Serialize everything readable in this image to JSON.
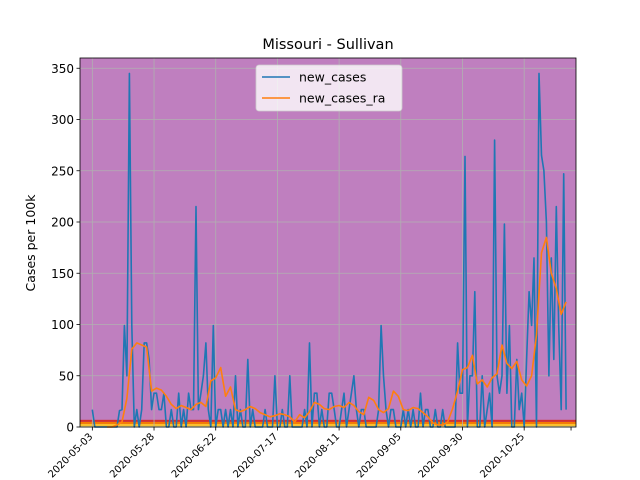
{
  "chart_data": {
    "type": "line",
    "title": "Missouri - Sullivan",
    "xlabel": "",
    "ylabel": "Cases per 100k",
    "xlim": [
      "2020-04-28",
      "2020-11-15"
    ],
    "ylim": [
      0,
      360
    ],
    "grid": true,
    "legend": "top-center",
    "background": {
      "color": "#bf7fbf",
      "bands": [
        {
          "from": 0,
          "to": 1,
          "color": "#f5e28a"
        },
        {
          "from": 1,
          "to": 3,
          "color": "#fbc02d"
        },
        {
          "from": 3,
          "to": 5,
          "color": "#f57c00"
        },
        {
          "from": 5,
          "to": 7,
          "color": "#d32f2f"
        }
      ]
    },
    "xticks": [
      "2020-05-03",
      "2020-05-28",
      "2020-06-22",
      "2020-07-17",
      "2020-08-11",
      "2020-09-05",
      "2020-09-30",
      "2020-10-25"
    ],
    "yticks": [
      0,
      50,
      100,
      150,
      200,
      250,
      300,
      350
    ],
    "series": [
      {
        "name": "new_cases",
        "color": "#1f77b4",
        "x": [
          "2020-05-03",
          "2020-05-04",
          "2020-05-05",
          "2020-05-06",
          "2020-05-07",
          "2020-05-08",
          "2020-05-09",
          "2020-05-10",
          "2020-05-11",
          "2020-05-12",
          "2020-05-13",
          "2020-05-14",
          "2020-05-15",
          "2020-05-16",
          "2020-05-17",
          "2020-05-18",
          "2020-05-19",
          "2020-05-20",
          "2020-05-21",
          "2020-05-22",
          "2020-05-23",
          "2020-05-24",
          "2020-05-25",
          "2020-05-26",
          "2020-05-27",
          "2020-05-28",
          "2020-05-29",
          "2020-05-30",
          "2020-05-31",
          "2020-06-01",
          "2020-06-02",
          "2020-06-03",
          "2020-06-04",
          "2020-06-05",
          "2020-06-06",
          "2020-06-07",
          "2020-06-08",
          "2020-06-09",
          "2020-06-10",
          "2020-06-11",
          "2020-06-12",
          "2020-06-13",
          "2020-06-14",
          "2020-06-15",
          "2020-06-16",
          "2020-06-17",
          "2020-06-18",
          "2020-06-19",
          "2020-06-20",
          "2020-06-21",
          "2020-06-22",
          "2020-06-23",
          "2020-06-24",
          "2020-06-25",
          "2020-06-26",
          "2020-06-27",
          "2020-06-28",
          "2020-06-29",
          "2020-06-30",
          "2020-07-01",
          "2020-07-02",
          "2020-07-03",
          "2020-07-04",
          "2020-07-05",
          "2020-07-06",
          "2020-07-07",
          "2020-07-08",
          "2020-07-09",
          "2020-07-10",
          "2020-07-11",
          "2020-07-12",
          "2020-07-13",
          "2020-07-14",
          "2020-07-15",
          "2020-07-16",
          "2020-07-17",
          "2020-07-18",
          "2020-07-19",
          "2020-07-20",
          "2020-07-21",
          "2020-07-22",
          "2020-07-23",
          "2020-07-24",
          "2020-07-25",
          "2020-07-26",
          "2020-07-27",
          "2020-07-28",
          "2020-07-29",
          "2020-07-30",
          "2020-07-31",
          "2020-08-01",
          "2020-08-02",
          "2020-08-03",
          "2020-08-04",
          "2020-08-05",
          "2020-08-06",
          "2020-08-07",
          "2020-08-08",
          "2020-08-09",
          "2020-08-10",
          "2020-08-11",
          "2020-08-12",
          "2020-08-13",
          "2020-08-14",
          "2020-08-15",
          "2020-08-16",
          "2020-08-17",
          "2020-08-18",
          "2020-08-19",
          "2020-08-20",
          "2020-08-21",
          "2020-08-22",
          "2020-08-23",
          "2020-08-24",
          "2020-08-25",
          "2020-08-26",
          "2020-08-27",
          "2020-08-28",
          "2020-08-29",
          "2020-08-30",
          "2020-08-31",
          "2020-09-01",
          "2020-09-02",
          "2020-09-03",
          "2020-09-04",
          "2020-09-05",
          "2020-09-06",
          "2020-09-07",
          "2020-09-08",
          "2020-09-09",
          "2020-09-10",
          "2020-09-11",
          "2020-09-12",
          "2020-09-13",
          "2020-09-14",
          "2020-09-15",
          "2020-09-16",
          "2020-09-17",
          "2020-09-18",
          "2020-09-19",
          "2020-09-20",
          "2020-09-21",
          "2020-09-22",
          "2020-09-23",
          "2020-09-24",
          "2020-09-25",
          "2020-09-26",
          "2020-09-27",
          "2020-09-28",
          "2020-09-29",
          "2020-09-30",
          "2020-10-01",
          "2020-10-02",
          "2020-10-03",
          "2020-10-04",
          "2020-10-05",
          "2020-10-06",
          "2020-10-07",
          "2020-10-08",
          "2020-10-09",
          "2020-10-10",
          "2020-10-11",
          "2020-10-12",
          "2020-10-13",
          "2020-10-14",
          "2020-10-15",
          "2020-10-16",
          "2020-10-17",
          "2020-10-18",
          "2020-10-19",
          "2020-10-20",
          "2020-10-21",
          "2020-10-22",
          "2020-10-23",
          "2020-10-24",
          "2020-10-25",
          "2020-10-26",
          "2020-10-27",
          "2020-10-28",
          "2020-10-29",
          "2020-10-30",
          "2020-10-31",
          "2020-11-01",
          "2020-11-02",
          "2020-11-03",
          "2020-11-04",
          "2020-11-05",
          "2020-11-06",
          "2020-11-07",
          "2020-11-08",
          "2020-11-09",
          "2020-11-10",
          "2020-11-11"
        ],
        "values": [
          17,
          0,
          0,
          0,
          0,
          0,
          0,
          0,
          0,
          0,
          0,
          16,
          17,
          99,
          50,
          345,
          99,
          0,
          17,
          0,
          17,
          82,
          82,
          66,
          17,
          33,
          33,
          17,
          17,
          33,
          0,
          0,
          17,
          0,
          0,
          33,
          0,
          17,
          0,
          33,
          17,
          17,
          215,
          17,
          33,
          50,
          82,
          17,
          0,
          99,
          0,
          17,
          17,
          0,
          17,
          0,
          17,
          0,
          50,
          0,
          17,
          0,
          0,
          66,
          0,
          17,
          0,
          0,
          0,
          0,
          17,
          0,
          0,
          0,
          50,
          0,
          0,
          17,
          0,
          0,
          50,
          0,
          0,
          0,
          0,
          0,
          17,
          0,
          82,
          0,
          33,
          33,
          0,
          17,
          0,
          0,
          33,
          33,
          17,
          0,
          0,
          17,
          33,
          0,
          17,
          33,
          50,
          17,
          0,
          17,
          17,
          0,
          0,
          0,
          0,
          0,
          17,
          99,
          50,
          17,
          0,
          17,
          17,
          0,
          0,
          0,
          17,
          0,
          17,
          0,
          17,
          0,
          0,
          33,
          0,
          17,
          17,
          0,
          0,
          17,
          0,
          0,
          17,
          0,
          0,
          0,
          0,
          0,
          82,
          33,
          33,
          264,
          0,
          50,
          50,
          132,
          0,
          0,
          50,
          0,
          17,
          33,
          0,
          280,
          50,
          33,
          50,
          198,
          33,
          99,
          0,
          0,
          66,
          17,
          33,
          0,
          66,
          132,
          99,
          165,
          0,
          345,
          265,
          250,
          200,
          50,
          165,
          66,
          215,
          99,
          17,
          247,
          17
        ]
      },
      {
        "name": "new_cases_ra",
        "color": "#ff7f0e",
        "x": [
          "2020-05-09",
          "2020-05-11",
          "2020-05-13",
          "2020-05-15",
          "2020-05-17",
          "2020-05-19",
          "2020-05-21",
          "2020-05-23",
          "2020-05-25",
          "2020-05-27",
          "2020-05-29",
          "2020-05-31",
          "2020-06-02",
          "2020-06-04",
          "2020-06-06",
          "2020-06-08",
          "2020-06-10",
          "2020-06-12",
          "2020-06-14",
          "2020-06-16",
          "2020-06-18",
          "2020-06-20",
          "2020-06-22",
          "2020-06-24",
          "2020-06-26",
          "2020-06-28",
          "2020-06-30",
          "2020-07-02",
          "2020-07-04",
          "2020-07-06",
          "2020-07-08",
          "2020-07-10",
          "2020-07-12",
          "2020-07-14",
          "2020-07-16",
          "2020-07-18",
          "2020-07-20",
          "2020-07-22",
          "2020-07-24",
          "2020-07-26",
          "2020-07-28",
          "2020-07-30",
          "2020-08-01",
          "2020-08-03",
          "2020-08-05",
          "2020-08-07",
          "2020-08-09",
          "2020-08-11",
          "2020-08-13",
          "2020-08-15",
          "2020-08-17",
          "2020-08-19",
          "2020-08-21",
          "2020-08-23",
          "2020-08-25",
          "2020-08-27",
          "2020-08-29",
          "2020-08-31",
          "2020-09-02",
          "2020-09-04",
          "2020-09-06",
          "2020-09-08",
          "2020-09-10",
          "2020-09-12",
          "2020-09-14",
          "2020-09-16",
          "2020-09-18",
          "2020-09-20",
          "2020-09-22",
          "2020-09-24",
          "2020-09-26",
          "2020-09-28",
          "2020-09-30",
          "2020-10-02",
          "2020-10-04",
          "2020-10-06",
          "2020-10-08",
          "2020-10-10",
          "2020-10-12",
          "2020-10-14",
          "2020-10-16",
          "2020-10-18",
          "2020-10-20",
          "2020-10-22",
          "2020-10-24",
          "2020-10-26",
          "2020-10-28",
          "2020-10-30",
          "2020-11-01",
          "2020-11-03",
          "2020-11-05",
          "2020-11-07",
          "2020-11-09",
          "2020-11-11"
        ],
        "values": [
          0,
          0,
          2,
          5,
          28,
          76,
          82,
          80,
          78,
          35,
          38,
          36,
          30,
          22,
          18,
          21,
          19,
          17,
          22,
          24,
          20,
          45,
          48,
          58,
          30,
          39,
          17,
          15,
          17,
          20,
          18,
          14,
          12,
          10,
          11,
          13,
          12,
          10,
          5,
          12,
          9,
          15,
          24,
          22,
          18,
          17,
          20,
          21,
          19,
          24,
          21,
          15,
          12,
          29,
          26,
          17,
          14,
          18,
          35,
          30,
          17,
          16,
          19,
          18,
          14,
          10,
          4,
          2,
          2,
          5,
          18,
          35,
          56,
          58,
          70,
          42,
          46,
          39,
          48,
          52,
          80,
          62,
          57,
          64,
          46,
          40,
          50,
          90,
          170,
          185,
          150,
          135,
          110,
          122
        ]
      }
    ]
  }
}
